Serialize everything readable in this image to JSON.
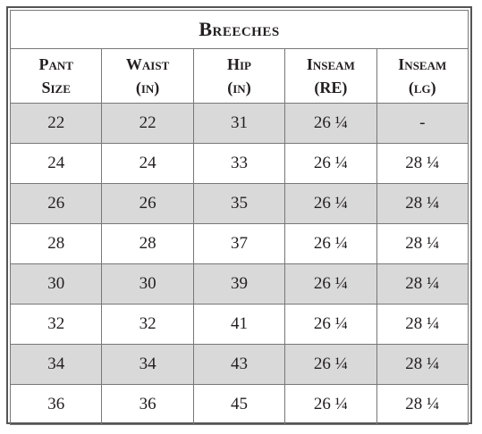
{
  "table": {
    "title": "Breeches",
    "header": [
      "Pant Size",
      "Waist (in)",
      "Hip (in)",
      "Inseam (RE)",
      "Inseam (lg)"
    ],
    "rows": [
      [
        "22",
        "22",
        "31",
        "26 ¼",
        "-"
      ],
      [
        "24",
        "24",
        "33",
        "26 ¼",
        "28 ¼"
      ],
      [
        "26",
        "26",
        "35",
        "26 ¼",
        "28 ¼"
      ],
      [
        "28",
        "28",
        "37",
        "26 ¼",
        "28 ¼"
      ],
      [
        "30",
        "30",
        "39",
        "26 ¼",
        "28 ¼"
      ],
      [
        "32",
        "32",
        "41",
        "26 ¼",
        "28 ¼"
      ],
      [
        "34",
        "34",
        "43",
        "26 ¼",
        "28 ¼"
      ],
      [
        "36",
        "36",
        "45",
        "26 ¼",
        "28 ¼"
      ]
    ]
  }
}
